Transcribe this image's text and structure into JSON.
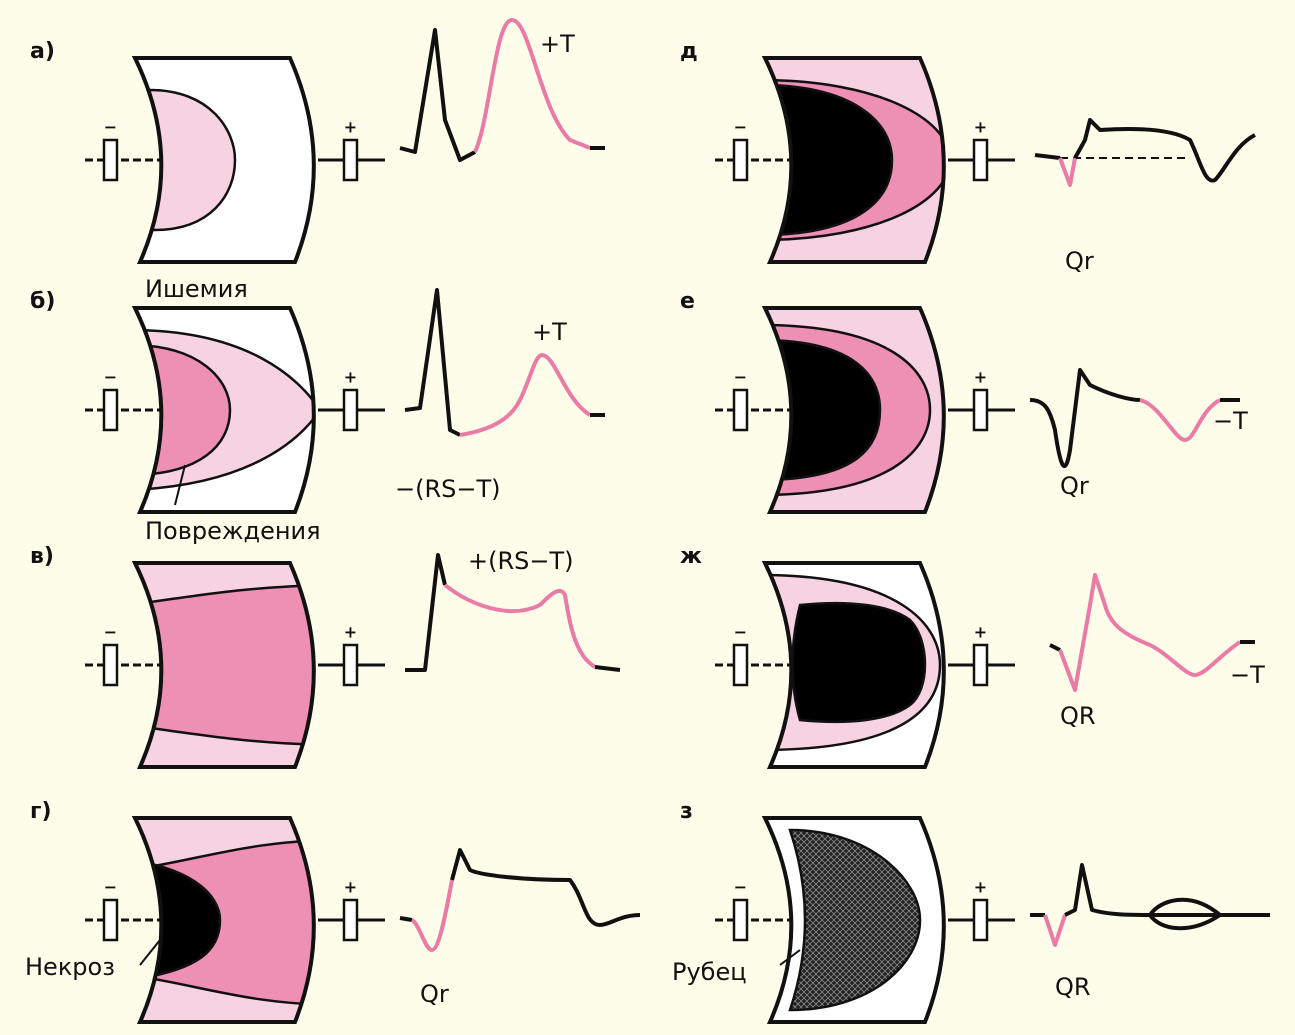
{
  "electrodes": {
    "negative": "−",
    "positive": "+"
  },
  "panels": [
    {
      "letter": "а)",
      "zone_label": "Ишемия",
      "wave_labels": [
        "+T"
      ]
    },
    {
      "letter": "б)",
      "zone_label": "Повреждения",
      "wave_labels": [
        "+T",
        "−(RS−T)"
      ]
    },
    {
      "letter": "в)",
      "wave_labels": [
        "+(RS−T)"
      ]
    },
    {
      "letter": "г)",
      "zone_label": "Некроз",
      "wave_labels": [
        "Qr"
      ]
    },
    {
      "letter": "д",
      "wave_labels": [
        "Qr"
      ]
    },
    {
      "letter": "е",
      "wave_labels": [
        "Qr",
        "−T"
      ]
    },
    {
      "letter": "ж",
      "wave_labels": [
        "QR",
        "−T"
      ]
    },
    {
      "letter": "з",
      "zone_label": "Рубец",
      "wave_labels": [
        "QR"
      ]
    }
  ]
}
